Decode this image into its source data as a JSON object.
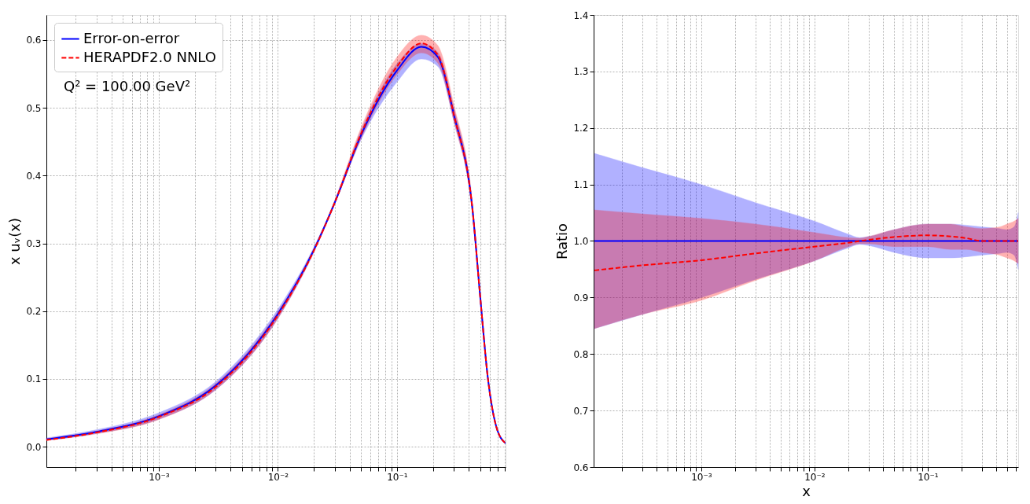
{
  "chart_data": [
    {
      "type": "line",
      "ylabel": "x uᵥ(x)",
      "xlim": [
        0.000114,
        0.815
      ],
      "ylim": [
        -0.03,
        0.637
      ],
      "log": "x",
      "grid": true,
      "legend": "top left",
      "yticks": [
        {
          "value": 0,
          "label": "0.0"
        },
        0.1,
        0.2,
        0.3,
        0.4,
        0.5,
        0.6
      ],
      "xticks": [
        {
          "value": 0.0002,
          "label": null
        },
        {
          "value": 0.0003,
          "label": null
        },
        {
          "value": 0.0004,
          "label": null
        },
        {
          "value": 0.0005,
          "label": null
        },
        {
          "value": 0.0006,
          "label": null
        },
        {
          "value": 0.0007,
          "label": null
        },
        {
          "value": 0.0008,
          "label": null
        },
        {
          "value": 0.0009,
          "label": null
        },
        {
          "value": 0.001,
          "label": "10⁻³"
        },
        {
          "value": 0.002,
          "label": null
        },
        {
          "value": 0.003,
          "label": null
        },
        {
          "value": 0.004,
          "label": null
        },
        {
          "value": 0.005,
          "label": null
        },
        {
          "value": 0.006,
          "label": null
        },
        {
          "value": 0.007,
          "label": null
        },
        {
          "value": 0.008,
          "label": null
        },
        {
          "value": 0.009,
          "label": null
        },
        {
          "value": 0.01,
          "label": "10⁻²"
        },
        {
          "value": 0.02,
          "label": null
        },
        {
          "value": 0.03,
          "label": null
        },
        {
          "value": 0.04,
          "label": null
        },
        {
          "value": 0.05,
          "label": null
        },
        {
          "value": 0.06,
          "label": null
        },
        {
          "value": 0.07,
          "label": null
        },
        {
          "value": 0.08,
          "label": null
        },
        {
          "value": 0.09,
          "label": null
        },
        {
          "value": 0.1,
          "label": "10⁻¹"
        },
        {
          "value": 0.2,
          "label": null
        },
        {
          "value": 0.3,
          "label": null
        },
        {
          "value": 0.4,
          "label": null
        },
        {
          "value": 0.5,
          "label": null
        },
        {
          "value": 0.6,
          "label": null
        },
        {
          "value": 0.7,
          "label": null
        },
        {
          "value": 0.8,
          "label": null
        }
      ],
      "x": [
        0.000114,
        0.0003,
        0.001,
        0.003,
        0.01,
        0.02,
        0.03,
        0.05,
        0.1,
        0.16,
        0.22,
        0.3,
        0.43,
        0.5,
        0.58,
        0.68,
        0.815
      ],
      "annotations": [
        "Q² = 100.00 GeV²"
      ],
      "series": [
        {
          "name": "Error-on-error",
          "color": "#0000ff",
          "line_style": "solid",
          "values": [
            0.011,
            0.022,
            0.045,
            0.09,
            0.196,
            0.29,
            0.36,
            0.46,
            0.555,
            0.59,
            0.575,
            0.49,
            0.35,
            0.22,
            0.1,
            0.03,
            0.005
          ],
          "lower": [
            0.0094,
            0.0193,
            0.0405,
            0.0837,
            0.189,
            0.286,
            0.358,
            0.453,
            0.538,
            0.572,
            0.561,
            0.48,
            0.343,
            0.216,
            0.097,
            0.029,
            0.005
          ],
          "upper": [
            0.013,
            0.025,
            0.05,
            0.096,
            0.203,
            0.294,
            0.362,
            0.467,
            0.565,
            0.595,
            0.582,
            0.5,
            0.357,
            0.224,
            0.103,
            0.031,
            0.005
          ]
        },
        {
          "name": "HERAPDF2.0 NNLO",
          "color": "#ff0000",
          "line_style": "dashed",
          "values": [
            0.01,
            0.021,
            0.044,
            0.088,
            0.194,
            0.289,
            0.36,
            0.462,
            0.561,
            0.595,
            0.578,
            0.49,
            0.35,
            0.22,
            0.1,
            0.03,
            0.005
          ],
          "lower": [
            0.009,
            0.019,
            0.04,
            0.084,
            0.189,
            0.287,
            0.358,
            0.455,
            0.549,
            0.581,
            0.566,
            0.48,
            0.343,
            0.216,
            0.098,
            0.029,
            0.005
          ],
          "upper": [
            0.012,
            0.023,
            0.047,
            0.093,
            0.199,
            0.291,
            0.364,
            0.471,
            0.575,
            0.607,
            0.592,
            0.505,
            0.36,
            0.226,
            0.102,
            0.031,
            0.005
          ]
        }
      ]
    },
    {
      "type": "line",
      "xlabel": "x",
      "ylabel": "Ratio",
      "xlim": [
        0.000112,
        0.63
      ],
      "ylim": [
        0.6,
        1.4
      ],
      "log": "x",
      "grid": true,
      "yticks": [
        0.6,
        0.7,
        0.8,
        0.9,
        {
          "value": 1,
          "label": "1.0"
        },
        1.1,
        1.2,
        1.3,
        1.4
      ],
      "xticks": [
        {
          "value": 0.0002,
          "label": null
        },
        {
          "value": 0.0003,
          "label": null
        },
        {
          "value": 0.0004,
          "label": null
        },
        {
          "value": 0.0005,
          "label": null
        },
        {
          "value": 0.0006,
          "label": null
        },
        {
          "value": 0.0007,
          "label": null
        },
        {
          "value": 0.0008,
          "label": null
        },
        {
          "value": 0.0009,
          "label": null
        },
        {
          "value": 0.001,
          "label": "10⁻³"
        },
        {
          "value": 0.002,
          "label": null
        },
        {
          "value": 0.003,
          "label": null
        },
        {
          "value": 0.004,
          "label": null
        },
        {
          "value": 0.005,
          "label": null
        },
        {
          "value": 0.006,
          "label": null
        },
        {
          "value": 0.007,
          "label": null
        },
        {
          "value": 0.008,
          "label": null
        },
        {
          "value": 0.009,
          "label": null
        },
        {
          "value": 0.01,
          "label": "10⁻²"
        },
        {
          "value": 0.02,
          "label": null
        },
        {
          "value": 0.03,
          "label": null
        },
        {
          "value": 0.04,
          "label": null
        },
        {
          "value": 0.05,
          "label": null
        },
        {
          "value": 0.06,
          "label": null
        },
        {
          "value": 0.07,
          "label": null
        },
        {
          "value": 0.08,
          "label": null
        },
        {
          "value": 0.09,
          "label": null
        },
        {
          "value": 0.1,
          "label": "10⁻¹"
        },
        {
          "value": 0.2,
          "label": null
        },
        {
          "value": 0.3,
          "label": null
        },
        {
          "value": 0.4,
          "label": null
        },
        {
          "value": 0.5,
          "label": null
        },
        {
          "value": 0.6,
          "label": null
        }
      ],
      "x": [
        0.000114,
        0.0003,
        0.001,
        0.003,
        0.01,
        0.02,
        0.025,
        0.03,
        0.05,
        0.1,
        0.16,
        0.22,
        0.3,
        0.43,
        0.5,
        0.58,
        0.63
      ],
      "series": [
        {
          "color": "#0000ff",
          "line_style": "solid",
          "values": [
            1.0,
            1.0,
            1.0,
            1.0,
            1.0,
            1.0,
            1.0,
            1.0,
            1.0,
            1.0,
            1.0,
            1.0,
            1.0,
            1.0,
            1.0,
            1.0,
            1.0
          ],
          "lower": [
            0.845,
            0.87,
            0.9,
            0.932,
            0.965,
            0.988,
            0.994,
            0.992,
            0.98,
            0.97,
            0.97,
            0.972,
            0.975,
            0.978,
            0.98,
            0.975,
            0.95
          ],
          "upper": [
            1.155,
            1.13,
            1.1,
            1.068,
            1.035,
            1.012,
            1.006,
            1.008,
            1.02,
            1.03,
            1.03,
            1.028,
            1.025,
            1.022,
            1.02,
            1.025,
            1.05
          ]
        },
        {
          "color": "#ff0000",
          "line_style": "dashed",
          "values": [
            0.948,
            0.957,
            0.966,
            0.978,
            0.99,
            0.997,
            1.0,
            1.002,
            1.007,
            1.01,
            1.008,
            1.005,
            1.0,
            1.0,
            1.0,
            1.0,
            1.0
          ],
          "lower": [
            0.845,
            0.87,
            0.895,
            0.93,
            0.965,
            0.99,
            0.995,
            0.995,
            0.99,
            0.99,
            0.985,
            0.985,
            0.98,
            0.975,
            0.97,
            0.965,
            0.96
          ],
          "upper": [
            1.055,
            1.048,
            1.04,
            1.03,
            1.015,
            1.006,
            1.005,
            1.008,
            1.02,
            1.03,
            1.03,
            1.025,
            1.022,
            1.025,
            1.03,
            1.035,
            1.04
          ]
        }
      ]
    }
  ]
}
